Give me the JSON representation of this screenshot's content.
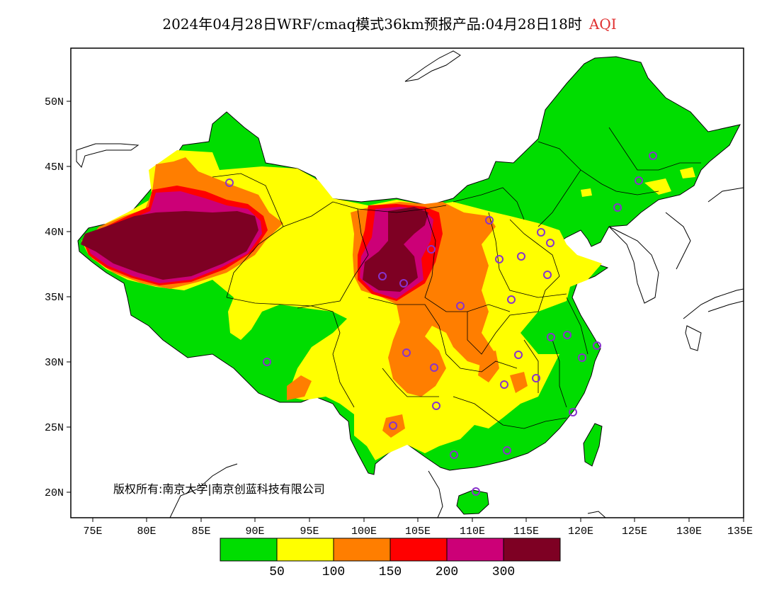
{
  "title": {
    "main": "2024年04月28日WRF/cmaq模式36km预报产品:04月28日18时",
    "variable": "AQI"
  },
  "axes": {
    "lat_labels": [
      "50N",
      "45N",
      "40N",
      "35N",
      "30N",
      "25N",
      "20N"
    ],
    "lon_labels": [
      "75E",
      "80E",
      "85E",
      "90E",
      "95E",
      "100E",
      "105E",
      "110E",
      "115E",
      "120E",
      "125E",
      "130E",
      "135E"
    ],
    "lon_range": [
      73,
      135
    ],
    "lat_range": [
      18,
      54
    ]
  },
  "copyright": "版权所有:南京大学|南京创蓝科技有限公司",
  "colorbar": {
    "colors": [
      "#00dd00",
      "#ffff00",
      "#ff7e00",
      "#ff0000",
      "#cc0077",
      "#7e0023"
    ],
    "labels": [
      "50",
      "100",
      "150",
      "200",
      "300"
    ]
  },
  "aqi_levels": {
    "good": "#00dd00",
    "moderate": "#ffff00",
    "sensitive": "#ff7e00",
    "unhealthy": "#ff0000",
    "very_unhealthy": "#cc0077",
    "hazardous": "#7e0023"
  }
}
